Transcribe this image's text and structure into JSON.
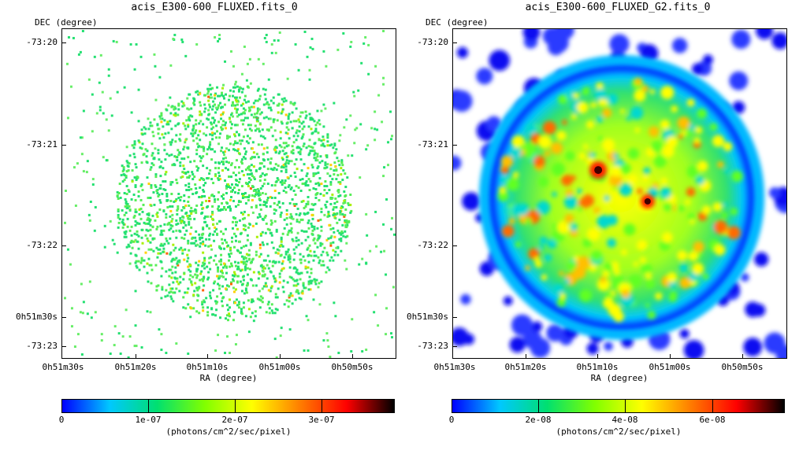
{
  "left": {
    "title": "acis_E300-600_FLUXED.fits_0",
    "dec_axis_label": "DEC (degree)",
    "ra_axis_label": "RA (degree)",
    "y_ticks": [
      "-73:20",
      "-73:21",
      "-73:22",
      "0h51m30s",
      "-73:23"
    ],
    "x_ticks": [
      "0h51m30s",
      "0h51m20s",
      "0h51m10s",
      "0h51m00s",
      "0h50m50s"
    ],
    "colorbar": {
      "ticks": [
        "0",
        "1e-07",
        "2e-07",
        "3e-07"
      ],
      "unit": "(photons/cm^2/sec/pixel)"
    }
  },
  "right": {
    "title": "acis_E300-600_FLUXED_G2.fits_0",
    "dec_axis_label": "DEC (degree)",
    "ra_axis_label": "RA (degree)",
    "y_ticks": [
      "-73:20",
      "-73:21",
      "-73:22",
      "0h51m30s",
      "-73:23"
    ],
    "x_ticks": [
      "0h51m30s",
      "0h51m20s",
      "0h51m10s",
      "0h51m00s",
      "0h50m50s"
    ],
    "colorbar": {
      "ticks": [
        "0",
        "2e-08",
        "4e-08",
        "6e-08"
      ],
      "unit": "(photons/cm^2/sec/pixel)"
    }
  },
  "colors": {
    "colormap": [
      "#0000ff",
      "#00c8ff",
      "#00e070",
      "#80ff00",
      "#ffff00",
      "#ff8000",
      "#ff0000",
      "#000000"
    ]
  }
}
